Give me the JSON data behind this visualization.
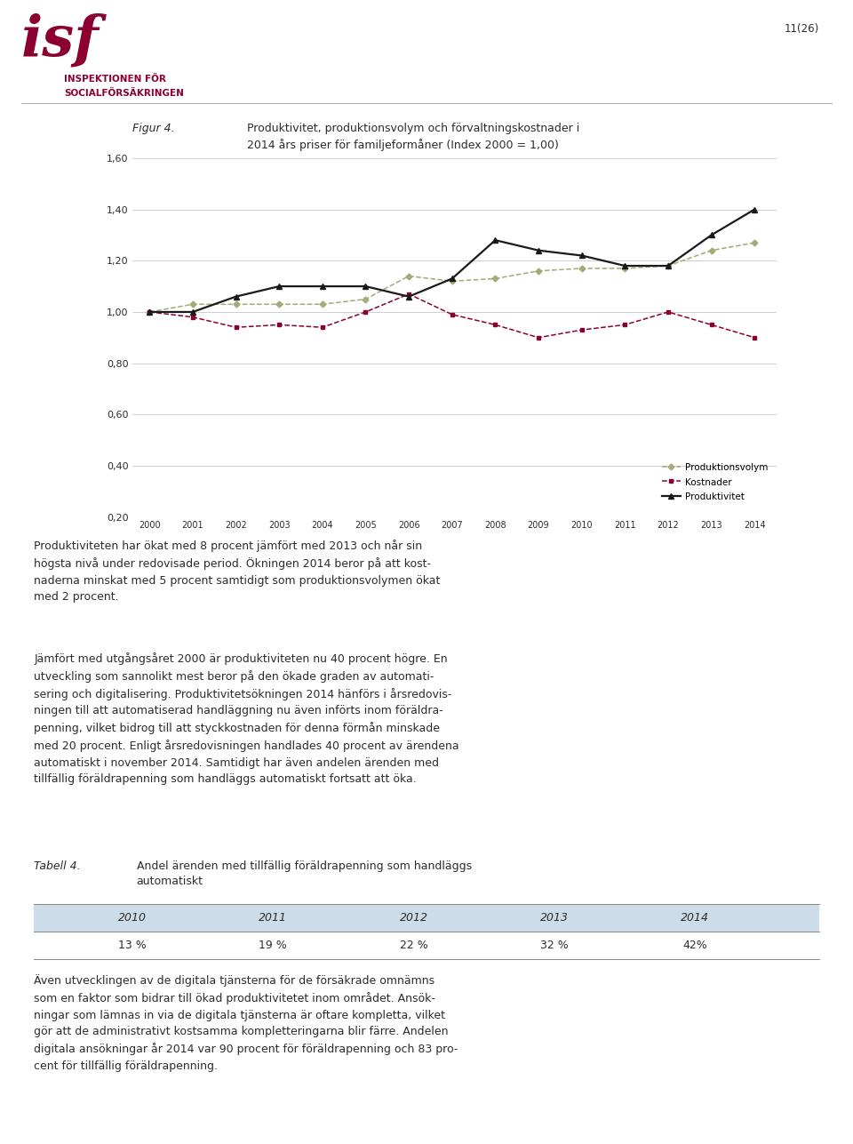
{
  "years": [
    2000,
    2001,
    2002,
    2003,
    2004,
    2005,
    2006,
    2007,
    2008,
    2009,
    2010,
    2011,
    2012,
    2013,
    2014
  ],
  "produktionsvolym": [
    1.0,
    1.03,
    1.03,
    1.03,
    1.03,
    1.05,
    1.14,
    1.12,
    1.13,
    1.16,
    1.17,
    1.17,
    1.18,
    1.24,
    1.27
  ],
  "kostnader": [
    1.0,
    0.98,
    0.94,
    0.95,
    0.94,
    1.0,
    1.07,
    0.99,
    0.95,
    0.9,
    0.93,
    0.95,
    1.0,
    0.95,
    0.9
  ],
  "produktivitet": [
    1.0,
    1.0,
    1.06,
    1.1,
    1.1,
    1.1,
    1.06,
    1.13,
    1.28,
    1.24,
    1.22,
    1.18,
    1.18,
    1.3,
    1.4
  ],
  "produktionsvolym_color": "#a8a878",
  "kostnader_color": "#8b0030",
  "produktivitet_color": "#1a1a1a",
  "ylim": [
    0.2,
    1.65
  ],
  "yticks": [
    0.2,
    0.4,
    0.6,
    0.8,
    1.0,
    1.2,
    1.4,
    1.6
  ],
  "ytick_labels": [
    "0,20",
    "0,40",
    "0,60",
    "0,80",
    "1,00",
    "1,20",
    "1,40",
    "1,60"
  ],
  "legend_produktionsvolym": "Produktionsvolym",
  "legend_kostnader": "Kostnader",
  "legend_produktivitet": "Produktivitet",
  "figure_title_label": "Figur 4.",
  "figure_title_text": "Produktivitet, produktionsvolym och förvaltningskostnader i\n2014 års priser för familjeformåner (Index 2000 = 1,00)",
  "page_number": "11(26)",
  "header_org_line1": "INSPEKTIONEN FÖR",
  "header_org_line2": "SOCIALFÖRSÄKRINGEN",
  "paragraph1": "Produktiviteten har ökat med 8 procent jämfört med 2013 och når sin\nhögsta nivå under redovisade period. Ökningen 2014 beror på att kost-\nnaderna minskat med 5 procent samtidigt som produktionsvolymen ökat\nmed 2 procent.",
  "paragraph2": "Jämfört med utgångsåret 2000 är produktiviteten nu 40 procent högre. En\nutveckling som sannolikt mest beror på den ökade graden av automati-\nsering och digitalisering. Produktivitetsökningen 2014 hänförs i årsredovis-\nningen till att automatiserad handläggning nu även införts inom föräldra-\npenning, vilket bidrog till att styckkostnaden för denna förmån minskade\nmed 20 procent. Enligt årsredovisningen handlades 40 procent av ärendena\nautomatiskt i november 2014. Samtidigt har även andelen ärenden med\ntillfällig föräldrapenning som handläggs automatiskt fortsatt att öka.",
  "tabell_label": "Tabell 4.",
  "tabell_title": "Andel ärenden med tillfällig föräldrapenning som handläggs\nautomatiskt",
  "table_years": [
    "2010",
    "2011",
    "2012",
    "2013",
    "2014"
  ],
  "table_values": [
    "13 %",
    "19 %",
    "22 %",
    "32 %",
    "42%"
  ],
  "paragraph3": "Även utvecklingen av de digitala tjänsterna för de försäkrade omnämns\nsom en faktor som bidrar till ökad produktivitetet inom området. Ansök-\nningar som lämnas in via de digitala tjänsterna är oftare kompletta, vilket\ngör att de administrativt kostsamma kompletteringarna blir färre. Andelen\ndigitala ansökningar år 2014 var 90 procent för föräldrapenning och 83 pro-\ncent för tillfällig föräldrapenning.",
  "background_color": "#ffffff",
  "grid_color": "#c8c8c8",
  "text_color": "#2c2c2c",
  "dark_red": "#8b0030"
}
